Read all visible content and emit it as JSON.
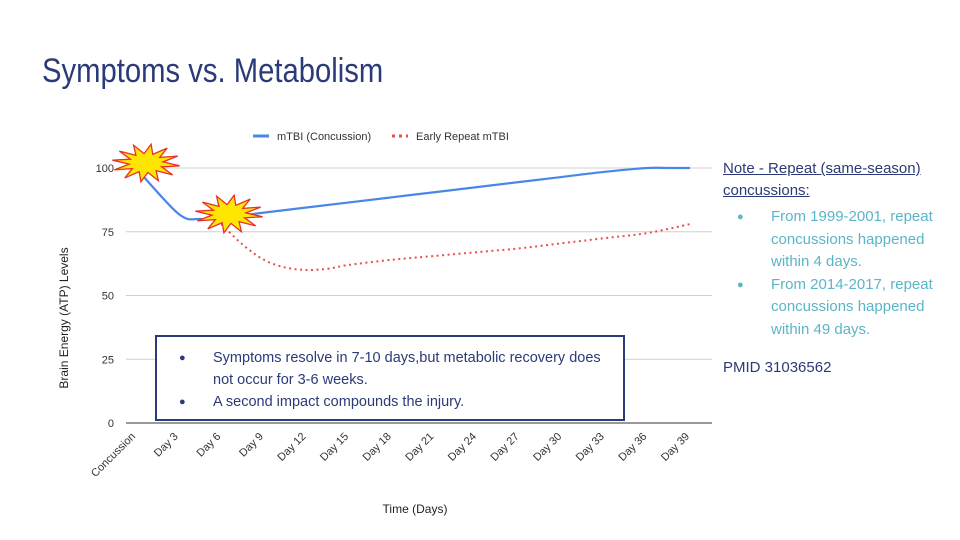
{
  "slide": {
    "title": "Symptoms vs. Metabolism"
  },
  "note": {
    "heading_line1": "Note - Repeat (same-season)",
    "heading_line2": "concussions:",
    "bullets": [
      "From 1999-2001, repeat concussions happened within 4 days.",
      "From 2014-2017, repeat concussions happened within 49 days."
    ]
  },
  "reference": "PMID 31036562",
  "callout": {
    "bullets": [
      "Symptoms resolve in 7-10 days,but metabolic recovery does not occur for 3-6 weeks.",
      "A second impact compounds the injury."
    ]
  },
  "colors": {
    "title": "#2b3a78",
    "series1": "#4a86e8",
    "series2": "#e8504a",
    "bullet": "#5bb5c8",
    "burst_fill": "#ffe600",
    "burst_stroke": "#e8302a"
  },
  "icons": [
    "impact-burst-icon",
    "impact-burst-icon"
  ],
  "chart_data": {
    "type": "line",
    "title": "",
    "xlabel": "Time (Days)",
    "ylabel": "Brain Energy (ATP) Levels",
    "ylim": [
      0,
      100
    ],
    "yticks": [
      0,
      25,
      50,
      75,
      100
    ],
    "grid": true,
    "legend_position": "top",
    "categories": [
      "Concussion",
      "Day 3",
      "Day 6",
      "Day 9",
      "Day 12",
      "Day 15",
      "Day 18",
      "Day 21",
      "Day 24",
      "Day 27",
      "Day 30",
      "Day 33",
      "Day 36",
      "Day 39"
    ],
    "series": [
      {
        "name": "mTBI (Concussion)",
        "style": "solid",
        "x": [
          0,
          1,
          1.5,
          2,
          3,
          4,
          5,
          6,
          7,
          8,
          9,
          10,
          11,
          12,
          12.5,
          13
        ],
        "values": [
          100,
          82,
          80,
          80.5,
          82.5,
          84.5,
          86.5,
          88.5,
          90.5,
          92.5,
          94.5,
          96.5,
          98.5,
          100,
          100,
          100
        ]
      },
      {
        "name": "Early Repeat mTBI",
        "style": "dotted",
        "x": [
          2,
          2.5,
          3,
          3.5,
          4,
          4.5,
          5,
          6,
          7,
          8,
          9,
          10,
          11,
          12,
          13
        ],
        "values": [
          78,
          70,
          64,
          61,
          60,
          60.5,
          62,
          64,
          65.5,
          67,
          68.5,
          70.5,
          72.5,
          74.5,
          78
        ]
      }
    ],
    "annotations": [
      {
        "type": "impact-burst",
        "x": 0,
        "y": 100
      },
      {
        "type": "impact-burst",
        "x": 2,
        "y": 80
      }
    ]
  }
}
